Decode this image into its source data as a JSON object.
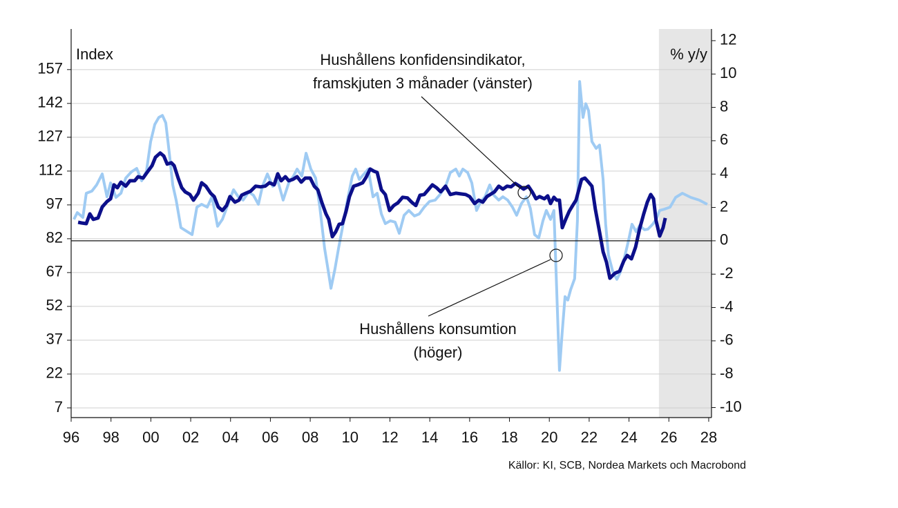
{
  "chart_data": {
    "type": "line",
    "y_label": "Index",
    "y2_label": "% y/y",
    "annotations": [
      [
        "Hushållens konfidensindikator,",
        "framskjuten 3 månader (vänster)"
      ],
      [
        "Hushållens konsumtion",
        "(höger)"
      ]
    ],
    "source": "Källor: KI, SCB, Nordea Markets och Macrobond",
    "xlim": [
      1996,
      2028.14
    ],
    "xticks": [
      {
        "value": 1996,
        "label": "96"
      },
      {
        "value": 1998,
        "label": "98"
      },
      {
        "value": 2000,
        "label": "00"
      },
      {
        "value": 2002,
        "label": "02"
      },
      {
        "value": 2004,
        "label": "04"
      },
      {
        "value": 2006,
        "label": "06"
      },
      {
        "value": 2008,
        "label": "08"
      },
      {
        "value": 2010,
        "label": "10"
      },
      {
        "value": 2012,
        "label": "12"
      },
      {
        "value": 2014,
        "label": "14"
      },
      {
        "value": 2016,
        "label": "16"
      },
      {
        "value": 2018,
        "label": "18"
      },
      {
        "value": 2020,
        "label": "20"
      },
      {
        "value": 2022,
        "label": "22"
      },
      {
        "value": 2024,
        "label": "24"
      },
      {
        "value": 2026,
        "label": "26"
      },
      {
        "value": 2028,
        "label": "28"
      }
    ],
    "ylim": [
      2.7,
      175
    ],
    "yticks": [
      7,
      22,
      37,
      52,
      67,
      82,
      97,
      112,
      127,
      142,
      157
    ],
    "y2lim": [
      -10.6,
      12.7
    ],
    "y2ticks": [
      -10,
      -8,
      -6,
      -4,
      -2,
      0,
      2,
      4,
      6,
      8,
      10,
      12
    ],
    "grid": true,
    "shade": [
      2025.5,
      2028.14
    ],
    "shade_color": "#e6e6e6",
    "series": [
      {
        "color": "#9fcbf3",
        "axis": "y2",
        "x": [
          1996.14,
          1996.31,
          1996.59,
          1996.76,
          1997.04,
          1997.28,
          1997.56,
          1997.8,
          1997.98,
          1998.25,
          1998.5,
          1998.74,
          1999.02,
          1999.29,
          1999.54,
          1999.78,
          1999.99,
          2000.2,
          2000.4,
          2000.58,
          2000.75,
          2000.92,
          2001.1,
          2001.27,
          2001.51,
          2001.79,
          2002.07,
          2002.31,
          2002.55,
          2002.83,
          2003.07,
          2003.35,
          2003.59,
          2003.87,
          2004.15,
          2004.39,
          2004.63,
          2004.91,
          2005.15,
          2005.4,
          2005.6,
          2005.85,
          2006.12,
          2006.37,
          2006.64,
          2006.92,
          2007.16,
          2007.34,
          2007.58,
          2007.79,
          2008.03,
          2008.27,
          2008.48,
          2008.72,
          2008.9,
          2009.04,
          2009.24,
          2009.42,
          2009.62,
          2009.87,
          2010.11,
          2010.28,
          2010.46,
          2010.7,
          2010.91,
          2011.15,
          2011.36,
          2011.57,
          2011.77,
          2012.02,
          2012.26,
          2012.47,
          2012.71,
          2012.95,
          2013.23,
          2013.47,
          2013.72,
          2013.99,
          2014.27,
          2014.51,
          2014.79,
          2015.03,
          2015.31,
          2015.48,
          2015.66,
          2015.9,
          2016.11,
          2016.35,
          2016.56,
          2016.77,
          2017.01,
          2017.22,
          2017.46,
          2017.67,
          2017.91,
          2018.15,
          2018.36,
          2018.6,
          2018.85,
          2019.05,
          2019.26,
          2019.47,
          2019.68,
          2019.85,
          2020.06,
          2020.23,
          2020.37,
          2020.51,
          2020.65,
          2020.79,
          2020.93,
          2021.07,
          2021.27,
          2021.41,
          2021.52,
          2021.69,
          2021.83,
          2021.97,
          2022.14,
          2022.35,
          2022.52,
          2022.7,
          2022.83,
          2022.97,
          2023.18,
          2023.39,
          2023.56,
          2023.8,
          2023.98,
          2024.15,
          2024.36,
          2024.53,
          2024.78,
          2024.95,
          2025.19,
          2025.36,
          2025.54,
          2025.78,
          2026.06,
          2026.34,
          2026.68,
          2027.1,
          2027.52,
          2027.93
        ],
        "values": [
          1.28,
          1.69,
          1.4,
          2.85,
          2.98,
          3.35,
          4.01,
          2.64,
          3.47,
          2.6,
          2.85,
          3.76,
          4.13,
          4.34,
          3.6,
          4.17,
          5.95,
          6.98,
          7.4,
          7.52,
          7.07,
          5.33,
          3.35,
          2.44,
          0.79,
          0.58,
          0.37,
          2.02,
          2.19,
          2.02,
          2.64,
          0.87,
          1.28,
          2.19,
          3.06,
          2.64,
          2.44,
          2.93,
          2.73,
          2.19,
          3.26,
          4.01,
          3.26,
          3.6,
          2.44,
          3.47,
          3.88,
          4.3,
          3.88,
          5.25,
          4.3,
          3.76,
          2.02,
          -0.45,
          -1.78,
          -2.85,
          -1.69,
          -0.45,
          0.79,
          2.44,
          3.88,
          4.3,
          3.68,
          4.01,
          4.3,
          2.64,
          2.85,
          1.61,
          1.03,
          1.2,
          1.12,
          0.45,
          1.53,
          1.82,
          1.49,
          1.61,
          2.02,
          2.36,
          2.44,
          2.77,
          3.26,
          4.09,
          4.3,
          3.88,
          4.3,
          4.09,
          3.47,
          1.82,
          2.36,
          2.64,
          3.35,
          2.73,
          2.44,
          2.64,
          2.44,
          2.02,
          1.53,
          2.23,
          2.64,
          1.94,
          0.37,
          0.17,
          1.2,
          1.82,
          1.28,
          1.82,
          -2.93,
          -7.77,
          -5.41,
          -3.35,
          -3.55,
          -2.93,
          -2.27,
          1.2,
          9.55,
          7.4,
          8.22,
          7.81,
          5.95,
          5.54,
          5.74,
          3.68,
          0.99,
          -0.87,
          -1.82,
          -2.31,
          -1.9,
          -0.87,
          0.04,
          0.99,
          0.54,
          0.91,
          0.66,
          0.7,
          0.99,
          1.28,
          1.82,
          1.9,
          2.02,
          2.6,
          2.85,
          2.6,
          2.44,
          2.19
        ]
      },
      {
        "color": "#0c0f8a",
        "x": [
          1996.35,
          1996.52,
          1996.76,
          1996.94,
          1997.11,
          1997.35,
          1997.56,
          1997.8,
          1997.98,
          1998.15,
          1998.32,
          1998.5,
          1998.74,
          1998.95,
          1999.19,
          1999.36,
          1999.61,
          1999.81,
          2000.06,
          2000.23,
          2000.47,
          2000.65,
          2000.82,
          2001.03,
          2001.17,
          2001.37,
          2001.55,
          2001.72,
          2001.96,
          2002.14,
          2002.38,
          2002.55,
          2002.76,
          2003.0,
          2003.18,
          2003.38,
          2003.59,
          2003.8,
          2003.97,
          2004.22,
          2004.42,
          2004.56,
          2004.77,
          2005.01,
          2005.26,
          2005.5,
          2005.74,
          2005.95,
          2006.19,
          2006.37,
          2006.54,
          2006.75,
          2006.92,
          2007.13,
          2007.34,
          2007.55,
          2007.75,
          2008.0,
          2008.2,
          2008.38,
          2008.59,
          2008.79,
          2008.93,
          2009.11,
          2009.28,
          2009.45,
          2009.62,
          2009.8,
          2009.97,
          2010.18,
          2010.39,
          2010.63,
          2010.8,
          2011.01,
          2011.19,
          2011.36,
          2011.57,
          2011.77,
          2011.98,
          2012.19,
          2012.4,
          2012.64,
          2012.88,
          2013.09,
          2013.3,
          2013.51,
          2013.72,
          2013.92,
          2014.13,
          2014.34,
          2014.55,
          2014.79,
          2015.03,
          2015.31,
          2015.55,
          2015.8,
          2016.0,
          2016.25,
          2016.46,
          2016.66,
          2016.87,
          2017.04,
          2017.25,
          2017.46,
          2017.67,
          2017.88,
          2018.08,
          2018.29,
          2018.5,
          2018.71,
          2018.95,
          2019.16,
          2019.33,
          2019.51,
          2019.75,
          2019.92,
          2020.06,
          2020.23,
          2020.37,
          2020.51,
          2020.65,
          2020.82,
          2021.0,
          2021.17,
          2021.34,
          2021.48,
          2021.62,
          2021.79,
          2021.97,
          2022.14,
          2022.31,
          2022.52,
          2022.7,
          2022.87,
          2023.04,
          2023.29,
          2023.53,
          2023.74,
          2023.91,
          2024.12,
          2024.33,
          2024.53,
          2024.74,
          2024.92,
          2025.09,
          2025.23,
          2025.36,
          2025.54,
          2025.71,
          2025.82
        ],
        "values": [
          89.3,
          89.0,
          88.7,
          93.0,
          90.6,
          91.2,
          96.1,
          98.5,
          99.7,
          105.9,
          104.6,
          107.1,
          105.3,
          107.7,
          107.7,
          109.5,
          108.9,
          111.4,
          114.4,
          118.1,
          120.0,
          118.7,
          115.1,
          115.7,
          114.4,
          108.9,
          104.6,
          102.8,
          101.6,
          99.1,
          102.2,
          106.8,
          105.3,
          102.2,
          100.7,
          96.1,
          94.5,
          96.7,
          100.7,
          98.2,
          99.1,
          101.3,
          102.2,
          103.1,
          105.3,
          105.0,
          105.3,
          106.8,
          105.9,
          110.8,
          107.7,
          109.5,
          107.7,
          108.3,
          109.5,
          107.1,
          108.9,
          108.9,
          105.3,
          103.7,
          97.9,
          93.0,
          90.6,
          82.9,
          85.1,
          88.4,
          88.7,
          94.2,
          100.7,
          105.3,
          105.9,
          106.8,
          109.2,
          112.9,
          112.0,
          111.4,
          103.7,
          101.6,
          94.5,
          96.7,
          97.9,
          100.4,
          100.1,
          98.2,
          96.7,
          101.3,
          101.6,
          103.7,
          105.9,
          104.6,
          102.8,
          105.3,
          101.6,
          102.2,
          101.9,
          101.6,
          100.7,
          97.6,
          99.1,
          98.2,
          100.7,
          101.6,
          102.8,
          105.3,
          104.0,
          105.3,
          105.0,
          106.5,
          105.3,
          104.0,
          105.3,
          102.5,
          99.7,
          100.7,
          99.7,
          101.0,
          97.6,
          100.4,
          99.1,
          99.1,
          86.9,
          90.6,
          94.2,
          96.7,
          99.1,
          103.7,
          108.3,
          108.9,
          107.1,
          105.3,
          95.2,
          85.1,
          76.2,
          71.6,
          64.5,
          66.7,
          67.6,
          72.2,
          74.6,
          73.1,
          78.3,
          86.3,
          93.0,
          98.2,
          101.6,
          99.7,
          90.0,
          83.2,
          86.9,
          91.2
        ]
      }
    ]
  }
}
